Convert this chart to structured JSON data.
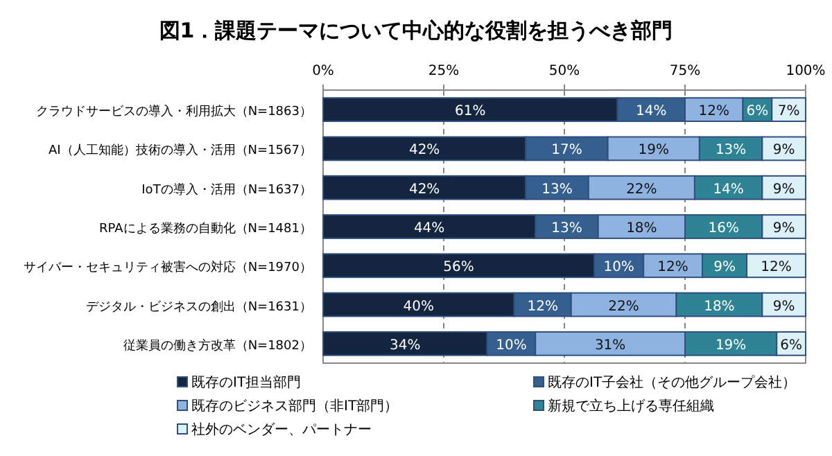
{
  "chart_data": {
    "type": "bar",
    "orientation": "horizontal",
    "stacked": true,
    "title": "図1．課題テーマについて中心的な役割を担うべき部門",
    "categories": [
      "クラウドサービスの導入・利用拡大（N=1863）",
      "AI（人工知能）技術の導入・活用（N=1567）",
      "IoTの導入・活用（N=1637）",
      "RPAによる業務の自動化（N=1481）",
      "サイバー・セキュリティ被害への対応（N=1970）",
      "デジタル・ビジネスの創出（N=1631）",
      "従業員の働き方改革（N=1802）"
    ],
    "series": [
      {
        "name": "既存のIT担当部門",
        "color": "#14263f",
        "values": [
          61,
          42,
          42,
          44,
          56.2,
          39.6,
          34
        ],
        "value_labels": [
          "61%",
          "42%",
          "42%",
          "44%",
          "56%",
          "40%",
          "34%"
        ]
      },
      {
        "name": "既存のIT子会社（その他グループ会社）",
        "color": "#355f8f",
        "values": [
          14,
          17,
          13,
          13,
          10.2,
          11.8,
          10
        ],
        "value_labels": [
          "14%",
          "17%",
          "13%",
          "13%",
          "10%",
          "12%",
          "10%"
        ]
      },
      {
        "name": "既存のビジネス部門（非IT部門）",
        "color": "#8eb3e0",
        "values": [
          12,
          19,
          22,
          18,
          12.2,
          21.8,
          31
        ],
        "value_labels": [
          "12%",
          "19%",
          "22%",
          "18%",
          "12%",
          "22%",
          "31%"
        ]
      },
      {
        "name": "新規で立ち上げる専任組織",
        "color": "#2e8395",
        "values": [
          6,
          13,
          14,
          16,
          9.2,
          17.8,
          19
        ],
        "value_labels": [
          "6%",
          "13%",
          "14%",
          "16%",
          "9%",
          "18%",
          "19%"
        ]
      },
      {
        "name": "社外のベンダー、パートナー",
        "color": "#dcf0f7",
        "values": [
          7,
          9,
          9,
          9,
          12.2,
          9,
          6
        ],
        "value_labels": [
          "7%",
          "9%",
          "9%",
          "9%",
          "12%",
          "9%",
          "6%"
        ]
      }
    ],
    "xlim": [
      0,
      100
    ],
    "xticks": [
      {
        "value": 0,
        "label": "0%"
      },
      {
        "value": 25,
        "label": "25%"
      },
      {
        "value": 50,
        "label": "50%"
      },
      {
        "value": 75,
        "label": "75%"
      },
      {
        "value": 100,
        "label": "100%"
      }
    ],
    "grid": "x",
    "legend": "bottom"
  }
}
